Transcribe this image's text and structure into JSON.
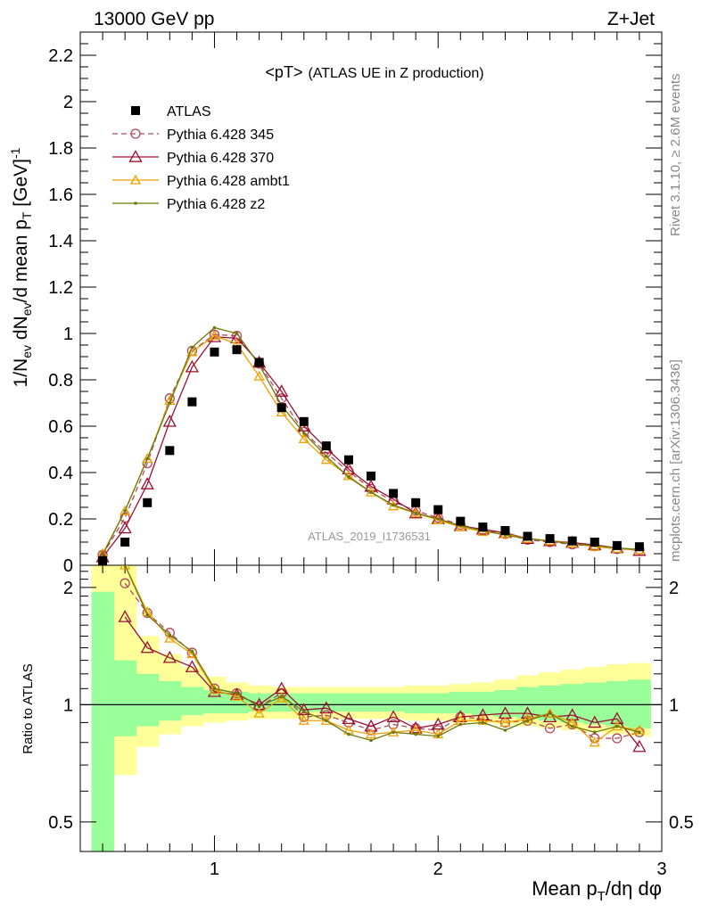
{
  "header": {
    "energy_label": "13000 GeV pp",
    "process_label": "Z+Jet",
    "plot_title": "<pT>",
    "plot_subtitle": "(ATLAS UE in Z production)",
    "analysis_id": "ATLAS_2019_I1736531",
    "side_rivet": "Rivet 3.1.10, ≥ 2.6M events",
    "side_source": "mcplots.cern.ch [arXiv:1306.3436]"
  },
  "chart_data": [
    {
      "type": "scatter",
      "panel": "main",
      "ylabel": "1/N_ev dN_ev/d mean p_T [GeV]^-1",
      "xlim": [
        0.4,
        3.0
      ],
      "ylim": [
        0,
        2.3
      ],
      "yticks": [
        0,
        0.2,
        0.4,
        0.6,
        0.8,
        1,
        1.2,
        1.4,
        1.6,
        1.8,
        2,
        2.2
      ],
      "ytick_labels": [
        "0",
        "0.2",
        "0.4",
        "0.6",
        "0.8",
        "1",
        "1.2",
        "1.4",
        "1.6",
        "1.8",
        "2",
        "2.2"
      ],
      "legend_position": "top-left",
      "x": [
        0.5,
        0.6,
        0.7,
        0.8,
        0.9,
        1.0,
        1.1,
        1.2,
        1.3,
        1.4,
        1.5,
        1.6,
        1.7,
        1.8,
        1.9,
        2.0,
        2.1,
        2.2,
        2.3,
        2.4,
        2.5,
        2.6,
        2.7,
        2.8,
        2.9
      ],
      "series": [
        {
          "name": "ATLAS",
          "color": "#000000",
          "marker": "square",
          "values": [
            0.02,
            0.1,
            0.27,
            0.495,
            0.705,
            0.92,
            0.93,
            0.875,
            0.68,
            0.62,
            0.515,
            0.455,
            0.385,
            0.31,
            0.27,
            0.24,
            0.19,
            0.165,
            0.15,
            0.125,
            0.115,
            0.105,
            0.1,
            0.085,
            0.08
          ]
        },
        {
          "name": "Pythia 6.428 345",
          "color": "#b14a5a",
          "marker": "circle-open",
          "dash": true,
          "values": [
            0.045,
            0.205,
            0.44,
            0.72,
            0.925,
            0.995,
            0.99,
            0.87,
            0.72,
            0.575,
            0.485,
            0.405,
            0.33,
            0.275,
            0.235,
            0.205,
            0.175,
            0.15,
            0.135,
            0.11,
            0.1,
            0.09,
            0.082,
            0.07,
            0.068
          ]
        },
        {
          "name": "Pythia 6.428 370",
          "color": "#9b1030",
          "marker": "triangle-open",
          "values": [
            0.035,
            0.16,
            0.35,
            0.62,
            0.855,
            0.985,
            0.98,
            0.875,
            0.75,
            0.6,
            0.505,
            0.415,
            0.34,
            0.285,
            0.225,
            0.2,
            0.17,
            0.155,
            0.14,
            0.115,
            0.105,
            0.098,
            0.088,
            0.075,
            0.063
          ]
        },
        {
          "name": "Pythia 6.428 ambt1",
          "color": "#f0a000",
          "marker": "triangle-open",
          "values": [
            0.05,
            0.235,
            0.46,
            0.71,
            0.92,
            0.99,
            0.955,
            0.815,
            0.66,
            0.545,
            0.455,
            0.385,
            0.315,
            0.255,
            0.225,
            0.195,
            0.165,
            0.145,
            0.135,
            0.115,
            0.105,
            0.095,
            0.08,
            0.072,
            0.066
          ]
        },
        {
          "name": "Pythia 6.428 z2",
          "color": "#6b7a0a",
          "marker": "dot",
          "values": [
            0.045,
            0.235,
            0.46,
            0.7,
            0.94,
            1.025,
            1.0,
            0.865,
            0.69,
            0.57,
            0.47,
            0.38,
            0.315,
            0.26,
            0.225,
            0.2,
            0.17,
            0.15,
            0.13,
            0.115,
            0.105,
            0.092,
            0.085,
            0.075,
            0.068
          ]
        }
      ]
    },
    {
      "type": "scatter",
      "panel": "ratio",
      "ylabel": "Ratio to ATLAS",
      "xlabel": "Mean p_T/dη dφ",
      "xlim": [
        0.4,
        3.0
      ],
      "ylim": [
        0.42,
        2.28
      ],
      "log_y": true,
      "yticks": [
        0.5,
        1,
        2
      ],
      "ytick_labels": [
        "0.5",
        "1",
        "2"
      ],
      "xticks": [
        1,
        2,
        3
      ],
      "xtick_labels": [
        "1",
        "2",
        "3"
      ],
      "x": [
        0.6,
        0.7,
        0.8,
        0.9,
        1.0,
        1.1,
        1.2,
        1.3,
        1.4,
        1.5,
        1.6,
        1.7,
        1.8,
        1.9,
        2.0,
        2.1,
        2.2,
        2.3,
        2.4,
        2.5,
        2.6,
        2.7,
        2.8,
        2.9
      ],
      "bands": {
        "x_edges": [
          0.45,
          0.55,
          0.65,
          0.75,
          0.85,
          0.95,
          1.05,
          1.15,
          1.25,
          1.35,
          1.45,
          1.55,
          1.65,
          1.75,
          1.85,
          1.95,
          2.05,
          2.15,
          2.25,
          2.35,
          2.45,
          2.55,
          2.65,
          2.75,
          2.85,
          2.95
        ],
        "yellow_low": [
          0.42,
          0.66,
          0.78,
          0.84,
          0.88,
          0.9,
          0.91,
          0.92,
          0.92,
          0.92,
          0.92,
          0.92,
          0.92,
          0.92,
          0.91,
          0.91,
          0.9,
          0.9,
          0.89,
          0.88,
          0.87,
          0.86,
          0.85,
          0.84,
          0.83
        ],
        "yellow_high": [
          2.28,
          2.28,
          1.5,
          1.35,
          1.25,
          1.18,
          1.14,
          1.12,
          1.11,
          1.11,
          1.11,
          1.11,
          1.11,
          1.11,
          1.12,
          1.12,
          1.13,
          1.14,
          1.16,
          1.19,
          1.21,
          1.23,
          1.25,
          1.27,
          1.28
        ],
        "green_low": [
          0.42,
          0.83,
          0.88,
          0.91,
          0.94,
          0.95,
          0.95,
          0.96,
          0.96,
          0.96,
          0.96,
          0.96,
          0.96,
          0.96,
          0.95,
          0.95,
          0.95,
          0.94,
          0.93,
          0.92,
          0.91,
          0.9,
          0.89,
          0.88,
          0.87
        ],
        "green_high": [
          1.95,
          1.3,
          1.2,
          1.15,
          1.11,
          1.09,
          1.08,
          1.07,
          1.07,
          1.07,
          1.07,
          1.07,
          1.07,
          1.07,
          1.07,
          1.07,
          1.08,
          1.08,
          1.09,
          1.11,
          1.12,
          1.13,
          1.14,
          1.15,
          1.16
        ]
      },
      "series": [
        {
          "name": "Pythia 6.428 345",
          "color": "#b14a5a",
          "marker": "circle-open",
          "dash": true,
          "values": [
            2.05,
            1.72,
            1.53,
            1.36,
            1.1,
            1.07,
            0.99,
            1.07,
            0.93,
            0.94,
            0.9,
            0.86,
            0.89,
            0.87,
            0.86,
            0.93,
            0.92,
            0.9,
            0.91,
            0.87,
            0.89,
            0.82,
            0.82,
            0.85
          ]
        },
        {
          "name": "Pythia 6.428 370",
          "color": "#9b1030",
          "marker": "triangle-open",
          "values": [
            1.68,
            1.4,
            1.32,
            1.25,
            1.08,
            1.06,
            1.0,
            1.1,
            0.97,
            0.98,
            0.92,
            0.88,
            0.93,
            0.87,
            0.89,
            0.93,
            0.94,
            0.95,
            0.95,
            0.93,
            0.94,
            0.9,
            0.92,
            0.78
          ]
        },
        {
          "name": "Pythia 6.428 ambt1",
          "color": "#f0a000",
          "marker": "triangle-open",
          "values": [
            2.3,
            1.73,
            1.48,
            1.35,
            1.09,
            1.05,
            0.95,
            1.04,
            0.91,
            0.91,
            0.86,
            0.84,
            0.85,
            0.86,
            0.84,
            0.91,
            0.91,
            0.9,
            0.92,
            0.95,
            0.9,
            0.8,
            0.88,
            0.86
          ]
        },
        {
          "name": "Pythia 6.428 z2",
          "color": "#6b7a0a",
          "marker": "dot",
          "values": [
            2.3,
            1.7,
            1.51,
            1.37,
            1.1,
            1.07,
            0.99,
            1.05,
            0.96,
            0.91,
            0.84,
            0.81,
            0.85,
            0.84,
            0.83,
            0.89,
            0.9,
            0.86,
            0.91,
            0.95,
            0.88,
            0.85,
            0.88,
            0.85
          ]
        }
      ]
    }
  ]
}
